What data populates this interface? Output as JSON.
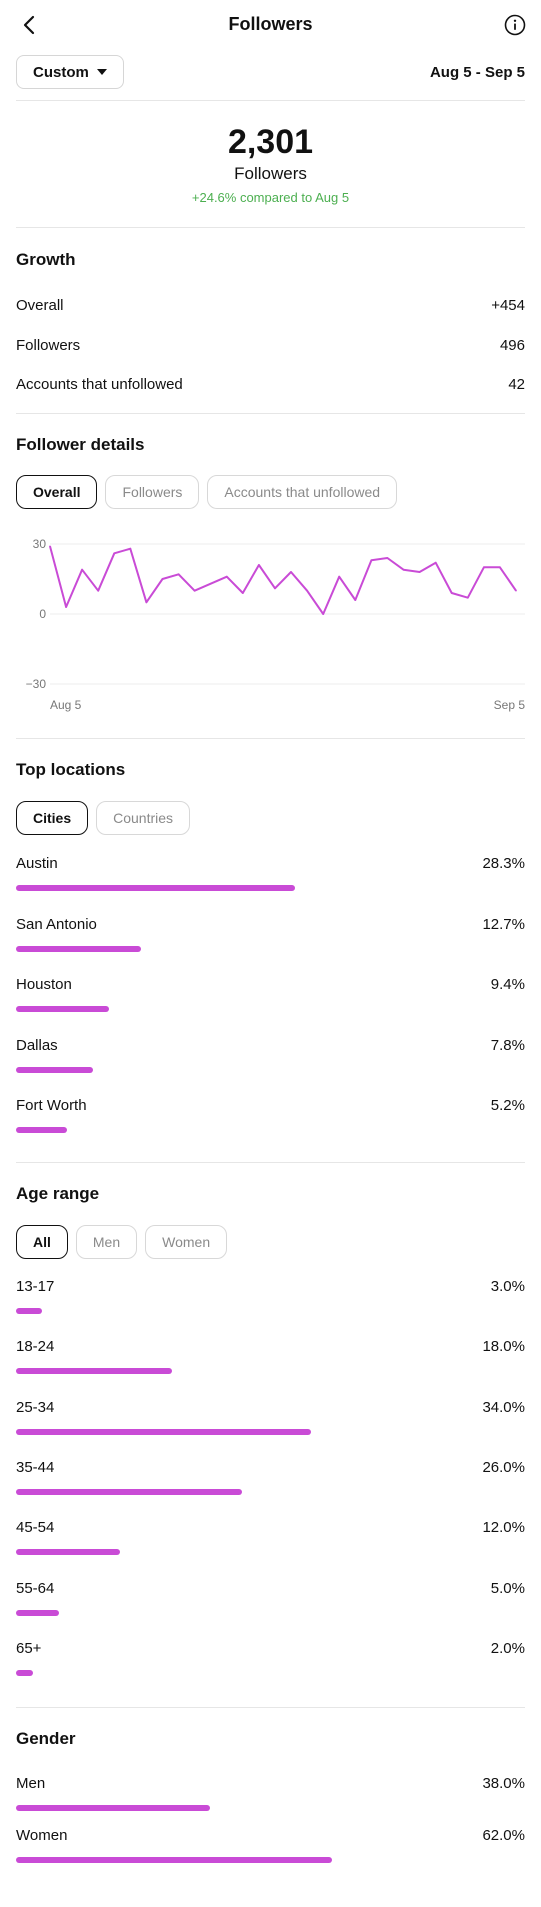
{
  "header": {
    "title": "Followers"
  },
  "toolbar": {
    "range_label": "Custom",
    "date_range": "Aug 5 - Sep 5"
  },
  "summary": {
    "count": "2,301",
    "label": "Followers",
    "delta": "+24.6% compared to Aug 5"
  },
  "growth": {
    "title": "Growth",
    "rows": [
      {
        "label": "Overall",
        "value": "+454"
      },
      {
        "label": "Followers",
        "value": "496"
      },
      {
        "label": "Accounts that unfollowed",
        "value": "42"
      }
    ]
  },
  "details": {
    "title": "Follower details",
    "tabs": [
      {
        "label": "Overall",
        "active": true
      },
      {
        "label": "Followers",
        "active": false
      },
      {
        "label": "Accounts that unfollowed",
        "active": false
      }
    ]
  },
  "chart_data": {
    "type": "line",
    "y_ticks": [
      "30",
      "0",
      "−30"
    ],
    "ylim": [
      -30,
      30
    ],
    "x_tick_labels": [
      "Aug 5",
      "Sep 5"
    ],
    "color": "#c94bd6",
    "series": [
      {
        "values": [
          29,
          3,
          19,
          10,
          26,
          28,
          5,
          15,
          17,
          10,
          13,
          16,
          9,
          21,
          11,
          18,
          10,
          0,
          16,
          6,
          23,
          24,
          19,
          18,
          22,
          9,
          7,
          20,
          20,
          10
        ]
      }
    ]
  },
  "locations": {
    "title": "Top locations",
    "tabs": [
      {
        "label": "Cities",
        "active": true
      },
      {
        "label": "Countries",
        "active": false
      }
    ],
    "items": [
      {
        "label": "Austin",
        "value": "28.3%",
        "fraction": 0.283
      },
      {
        "label": "San Antonio",
        "value": "12.7%",
        "fraction": 0.127
      },
      {
        "label": "Houston",
        "value": "9.4%",
        "fraction": 0.094
      },
      {
        "label": "Dallas",
        "value": "7.8%",
        "fraction": 0.078
      },
      {
        "label": "Fort Worth",
        "value": "5.2%",
        "fraction": 0.052
      }
    ]
  },
  "age": {
    "title": "Age range",
    "tabs": [
      {
        "label": "All",
        "active": true
      },
      {
        "label": "Men",
        "active": false
      },
      {
        "label": "Women",
        "active": false
      }
    ],
    "items": [
      {
        "label": "13-17",
        "value": "3.0%",
        "fraction": 0.03
      },
      {
        "label": "18-24",
        "value": "18.0%",
        "fraction": 0.18
      },
      {
        "label": "25-34",
        "value": "34.0%",
        "fraction": 0.34
      },
      {
        "label": "35-44",
        "value": "26.0%",
        "fraction": 0.26
      },
      {
        "label": "45-54",
        "value": "12.0%",
        "fraction": 0.12
      },
      {
        "label": "55-64",
        "value": "5.0%",
        "fraction": 0.05
      },
      {
        "label": "65+",
        "value": "2.0%",
        "fraction": 0.02
      }
    ]
  },
  "gender": {
    "title": "Gender",
    "items": [
      {
        "label": "Men",
        "value": "38.0%",
        "fraction": 0.38
      },
      {
        "label": "Women",
        "value": "62.0%",
        "fraction": 0.62
      }
    ]
  },
  "colors": {
    "accent": "#c94bd6",
    "positive": "#4caf50"
  }
}
